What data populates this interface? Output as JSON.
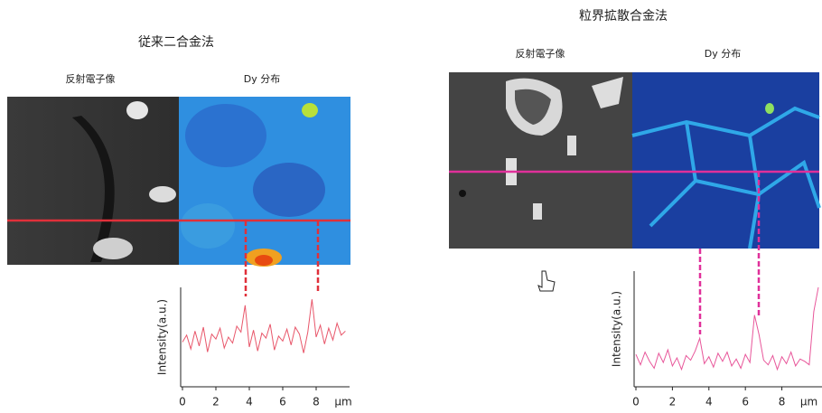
{
  "panels": [
    {
      "title": "従来二合金法",
      "image_labels": [
        "反射電子像",
        "Dy 分布"
      ]
    },
    {
      "title": "粒界拡散合金法",
      "image_labels": [
        "反射電子像",
        "Dy 分布"
      ]
    }
  ],
  "chart_data": [
    {
      "type": "line",
      "y_label": "Intensity(a.u.)",
      "x_label": "μm",
      "x": [
        0,
        0.25,
        0.5,
        0.75,
        1,
        1.25,
        1.5,
        1.75,
        2,
        2.25,
        2.5,
        2.75,
        3,
        3.25,
        3.5,
        3.75,
        4,
        4.25,
        4.5,
        4.75,
        5,
        5.25,
        5.5,
        5.75,
        6,
        6.25,
        6.5,
        6.75,
        7,
        7.25,
        7.5,
        7.75,
        8,
        8.25,
        8.5,
        8.75,
        9,
        9.25,
        9.5,
        9.75
      ],
      "series": [
        {
          "color": "#e8566a",
          "values": [
            4.5,
            5.2,
            3.8,
            5.6,
            4.1,
            6.0,
            3.5,
            5.3,
            4.8,
            5.9,
            3.9,
            5.0,
            4.4,
            6.1,
            5.5,
            8.2,
            4.0,
            5.7,
            3.6,
            5.4,
            4.9,
            6.3,
            3.7,
            5.1,
            4.6,
            5.8,
            4.2,
            6.0,
            5.3,
            3.4,
            5.5,
            8.8,
            5.0,
            6.2,
            4.3,
            5.9,
            4.7,
            6.4,
            5.2,
            5.6
          ]
        }
      ],
      "xlim": [
        0,
        10
      ],
      "xticks": [
        0,
        2,
        4,
        6,
        8
      ],
      "ylim": [
        0,
        10
      ]
    },
    {
      "type": "line",
      "y_label": "Intensity(a.u.)",
      "x_label": "μm",
      "x": [
        0,
        0.25,
        0.5,
        0.75,
        1,
        1.25,
        1.5,
        1.75,
        2,
        2.25,
        2.5,
        2.75,
        3,
        3.25,
        3.5,
        3.75,
        4,
        4.25,
        4.5,
        4.75,
        5,
        5.25,
        5.5,
        5.75,
        6,
        6.25,
        6.5,
        6.75,
        7,
        7.25,
        7.5,
        7.75,
        8,
        8.25,
        8.5,
        8.75,
        9,
        9.25,
        9.5,
        9.75,
        10
      ],
      "series": [
        {
          "color": "#e8569a",
          "values": [
            2.8,
            1.9,
            3.0,
            2.2,
            1.6,
            2.9,
            2.1,
            3.2,
            1.8,
            2.5,
            1.5,
            2.7,
            2.3,
            3.1,
            4.2,
            2.0,
            2.6,
            1.7,
            2.9,
            2.2,
            3.0,
            1.8,
            2.4,
            1.6,
            2.8,
            2.1,
            6.2,
            4.5,
            2.3,
            1.9,
            2.7,
            1.5,
            2.6,
            2.0,
            3.0,
            1.8,
            2.4,
            2.2,
            1.9,
            6.5,
            8.6
          ]
        }
      ],
      "xlim": [
        0,
        10.2
      ],
      "xticks": [
        0,
        2,
        4,
        6,
        8
      ],
      "ylim": [
        0,
        10
      ]
    }
  ]
}
